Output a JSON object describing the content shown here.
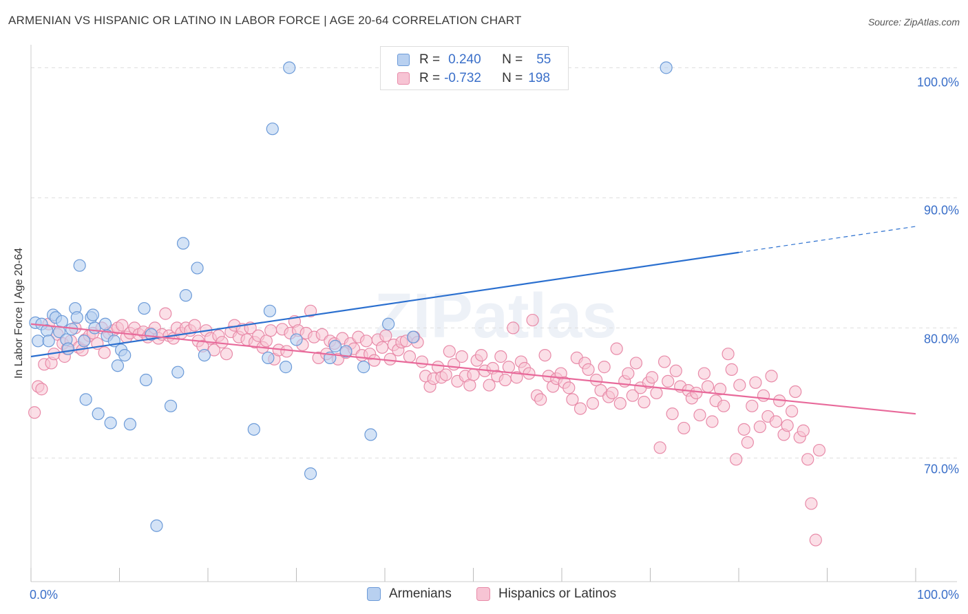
{
  "title": "ARMENIAN VS HISPANIC OR LATINO IN LABOR FORCE | AGE 20-64 CORRELATION CHART",
  "source": "Source: ZipAtlas.com",
  "watermark": "ZIPatlas",
  "legend": {
    "rows": [
      {
        "r_label": "R =",
        "r_value": "0.240",
        "n_label": "N =",
        "n_value": "55"
      },
      {
        "r_label": "R =",
        "r_value": "-0.732",
        "n_label": "N =",
        "n_value": "198"
      }
    ]
  },
  "bottom_legend": [
    "Armenians",
    "Hispanics or Latinos"
  ],
  "colors": {
    "armenians_fill": "#b8d0f0",
    "armenians_stroke": "#6b9ad8",
    "armenians_line": "#2a6fcf",
    "hispanics_fill": "#f7c4d4",
    "hispanics_stroke": "#e88aa8",
    "hispanics_line": "#e8699a",
    "axis_text": "#3a6fc9",
    "grid": "#dddddd"
  },
  "chart_data": {
    "type": "scatter",
    "title": "ARMENIAN VS HISPANIC OR LATINO IN LABOR FORCE | AGE 20-64 CORRELATION CHART",
    "xlabel": "",
    "ylabel": "In Labor Force | Age 20-64",
    "xlim": [
      0,
      100
    ],
    "ylim": [
      60.5,
      101.5
    ],
    "x_tick_labels": [
      "0.0%",
      "100.0%"
    ],
    "y_ticks": [
      70,
      80,
      90,
      100
    ],
    "y_tick_labels": [
      "70.0%",
      "80.0%",
      "90.0%",
      "100.0%"
    ],
    "grid": true,
    "legend_position": "top-center",
    "series": [
      {
        "name": "Armenians",
        "r": 0.24,
        "n": 55,
        "trend": {
          "x0": 0,
          "y0": 77.8,
          "x1": 80,
          "y1": 85.8,
          "dashed_to_x": 100,
          "dashed_to_y": 87.8
        },
        "points": [
          [
            0.5,
            80.4
          ],
          [
            0.8,
            79.0
          ],
          [
            1.2,
            80.3
          ],
          [
            1.8,
            79.8
          ],
          [
            2.0,
            79.0
          ],
          [
            2.5,
            81.0
          ],
          [
            2.8,
            80.8
          ],
          [
            3.2,
            79.7
          ],
          [
            3.5,
            80.5
          ],
          [
            4.0,
            79.1
          ],
          [
            4.2,
            78.4
          ],
          [
            4.6,
            79.9
          ],
          [
            5.0,
            81.5
          ],
          [
            5.2,
            80.8
          ],
          [
            5.5,
            84.8
          ],
          [
            6.0,
            79.0
          ],
          [
            6.2,
            74.5
          ],
          [
            6.8,
            80.8
          ],
          [
            7.0,
            81.0
          ],
          [
            7.2,
            80.0
          ],
          [
            7.6,
            73.4
          ],
          [
            8.4,
            80.3
          ],
          [
            8.6,
            79.4
          ],
          [
            9.0,
            72.7
          ],
          [
            9.4,
            79.0
          ],
          [
            9.8,
            77.1
          ],
          [
            10.2,
            78.3
          ],
          [
            10.6,
            77.9
          ],
          [
            11.2,
            72.6
          ],
          [
            12.8,
            81.5
          ],
          [
            13.0,
            76.0
          ],
          [
            13.6,
            79.5
          ],
          [
            14.2,
            64.8
          ],
          [
            15.8,
            74.0
          ],
          [
            16.6,
            76.6
          ],
          [
            17.2,
            86.5
          ],
          [
            17.5,
            82.5
          ],
          [
            18.8,
            84.6
          ],
          [
            19.6,
            77.9
          ],
          [
            25.2,
            72.2
          ],
          [
            26.8,
            77.7
          ],
          [
            27.0,
            81.3
          ],
          [
            27.3,
            95.3
          ],
          [
            28.8,
            77.0
          ],
          [
            29.2,
            100.0
          ],
          [
            30.0,
            79.1
          ],
          [
            31.6,
            68.8
          ],
          [
            33.8,
            77.7
          ],
          [
            34.4,
            78.6
          ],
          [
            35.6,
            78.2
          ],
          [
            37.6,
            77.0
          ],
          [
            38.4,
            71.8
          ],
          [
            40.4,
            80.3
          ],
          [
            43.2,
            79.3
          ],
          [
            71.8,
            100.0
          ]
        ]
      },
      {
        "name": "Hispanics or Latinos",
        "r": -0.732,
        "n": 198,
        "trend": {
          "x0": 0,
          "y0": 80.3,
          "x1": 100,
          "y1": 73.4
        },
        "points": [
          [
            0.4,
            73.5
          ],
          [
            0.8,
            75.5
          ],
          [
            1.2,
            75.3
          ],
          [
            1.5,
            77.2
          ],
          [
            2.0,
            80.3
          ],
          [
            2.3,
            77.3
          ],
          [
            2.6,
            78.0
          ],
          [
            3.0,
            79.5
          ],
          [
            3.6,
            78.8
          ],
          [
            3.8,
            77.8
          ],
          [
            4.1,
            78.4
          ],
          [
            4.5,
            79.0
          ],
          [
            5.0,
            80.0
          ],
          [
            5.4,
            78.5
          ],
          [
            5.8,
            78.3
          ],
          [
            6.1,
            79.1
          ],
          [
            6.6,
            79.4
          ],
          [
            7.0,
            79.6
          ],
          [
            7.5,
            78.8
          ],
          [
            8.0,
            80.0
          ],
          [
            8.3,
            78.1
          ],
          [
            8.8,
            79.6
          ],
          [
            9.3,
            79.8
          ],
          [
            9.8,
            80.0
          ],
          [
            10.3,
            80.2
          ],
          [
            10.8,
            79.3
          ],
          [
            11.2,
            79.6
          ],
          [
            11.7,
            80.0
          ],
          [
            12.2,
            79.5
          ],
          [
            12.7,
            79.7
          ],
          [
            13.2,
            79.3
          ],
          [
            13.5,
            79.6
          ],
          [
            14.0,
            80.0
          ],
          [
            14.4,
            79.2
          ],
          [
            14.8,
            79.5
          ],
          [
            15.2,
            81.1
          ],
          [
            15.6,
            79.4
          ],
          [
            16.1,
            79.2
          ],
          [
            16.5,
            80.0
          ],
          [
            17.0,
            79.6
          ],
          [
            17.5,
            80.0
          ],
          [
            18.0,
            79.8
          ],
          [
            18.5,
            80.2
          ],
          [
            18.9,
            79.0
          ],
          [
            19.4,
            78.6
          ],
          [
            19.8,
            79.8
          ],
          [
            20.3,
            79.2
          ],
          [
            20.7,
            78.3
          ],
          [
            21.2,
            79.4
          ],
          [
            21.6,
            78.9
          ],
          [
            22.1,
            78.0
          ],
          [
            22.6,
            79.7
          ],
          [
            23.0,
            80.2
          ],
          [
            23.5,
            79.3
          ],
          [
            23.9,
            79.9
          ],
          [
            24.4,
            79.1
          ],
          [
            24.8,
            80.0
          ],
          [
            25.3,
            78.9
          ],
          [
            25.7,
            79.4
          ],
          [
            26.2,
            78.5
          ],
          [
            26.6,
            79.0
          ],
          [
            27.1,
            79.8
          ],
          [
            27.5,
            77.6
          ],
          [
            28.0,
            78.3
          ],
          [
            28.4,
            79.9
          ],
          [
            28.9,
            78.2
          ],
          [
            29.3,
            79.6
          ],
          [
            29.8,
            80.5
          ],
          [
            30.2,
            79.8
          ],
          [
            30.7,
            78.7
          ],
          [
            31.1,
            79.6
          ],
          [
            31.6,
            81.3
          ],
          [
            32.0,
            79.3
          ],
          [
            32.5,
            77.7
          ],
          [
            32.9,
            79.5
          ],
          [
            33.4,
            78.0
          ],
          [
            33.8,
            79.0
          ],
          [
            34.3,
            78.8
          ],
          [
            34.7,
            77.6
          ],
          [
            35.2,
            79.2
          ],
          [
            35.6,
            78.1
          ],
          [
            36.1,
            78.8
          ],
          [
            36.5,
            78.4
          ],
          [
            37.0,
            79.3
          ],
          [
            37.4,
            77.9
          ],
          [
            37.9,
            79.0
          ],
          [
            38.3,
            78.0
          ],
          [
            38.8,
            77.5
          ],
          [
            39.2,
            79.1
          ],
          [
            39.7,
            78.5
          ],
          [
            40.1,
            79.4
          ],
          [
            40.6,
            77.6
          ],
          [
            41.0,
            78.7
          ],
          [
            41.5,
            78.3
          ],
          [
            41.9,
            78.9
          ],
          [
            42.4,
            79.0
          ],
          [
            42.8,
            77.8
          ],
          [
            43.3,
            79.3
          ],
          [
            43.7,
            78.9
          ],
          [
            44.2,
            77.4
          ],
          [
            44.6,
            76.3
          ],
          [
            45.1,
            75.5
          ],
          [
            45.5,
            76.1
          ],
          [
            46.0,
            77.0
          ],
          [
            46.4,
            76.2
          ],
          [
            46.9,
            76.4
          ],
          [
            47.3,
            78.2
          ],
          [
            47.8,
            77.2
          ],
          [
            48.2,
            75.9
          ],
          [
            48.7,
            77.8
          ],
          [
            49.1,
            76.3
          ],
          [
            49.6,
            75.6
          ],
          [
            50.0,
            76.4
          ],
          [
            50.4,
            77.5
          ],
          [
            50.9,
            77.9
          ],
          [
            51.3,
            76.7
          ],
          [
            51.8,
            75.6
          ],
          [
            52.2,
            76.9
          ],
          [
            52.7,
            76.3
          ],
          [
            53.1,
            77.8
          ],
          [
            53.6,
            76.0
          ],
          [
            54.0,
            77.0
          ],
          [
            54.5,
            80.0
          ],
          [
            54.9,
            76.2
          ],
          [
            55.4,
            77.4
          ],
          [
            55.8,
            76.9
          ],
          [
            56.3,
            76.5
          ],
          [
            56.7,
            80.6
          ],
          [
            57.2,
            74.8
          ],
          [
            57.6,
            74.5
          ],
          [
            58.1,
            77.9
          ],
          [
            58.5,
            76.3
          ],
          [
            59.0,
            75.5
          ],
          [
            59.4,
            76.1
          ],
          [
            59.9,
            76.5
          ],
          [
            60.3,
            75.8
          ],
          [
            60.8,
            75.4
          ],
          [
            61.2,
            74.5
          ],
          [
            61.7,
            77.7
          ],
          [
            62.1,
            73.8
          ],
          [
            62.6,
            77.3
          ],
          [
            63.0,
            76.8
          ],
          [
            63.5,
            74.2
          ],
          [
            63.9,
            76.0
          ],
          [
            64.4,
            75.2
          ],
          [
            64.8,
            77.0
          ],
          [
            65.3,
            74.7
          ],
          [
            65.7,
            75.0
          ],
          [
            66.2,
            78.4
          ],
          [
            66.6,
            74.2
          ],
          [
            67.1,
            75.9
          ],
          [
            67.5,
            76.5
          ],
          [
            68.0,
            74.8
          ],
          [
            68.4,
            77.3
          ],
          [
            68.9,
            75.4
          ],
          [
            69.3,
            74.3
          ],
          [
            69.8,
            75.8
          ],
          [
            70.2,
            76.2
          ],
          [
            70.7,
            75.0
          ],
          [
            71.1,
            70.8
          ],
          [
            71.6,
            77.4
          ],
          [
            72.0,
            75.9
          ],
          [
            72.5,
            73.4
          ],
          [
            72.9,
            76.7
          ],
          [
            73.4,
            75.5
          ],
          [
            73.8,
            72.3
          ],
          [
            74.3,
            75.2
          ],
          [
            74.7,
            74.6
          ],
          [
            75.2,
            75.0
          ],
          [
            75.6,
            73.3
          ],
          [
            76.1,
            76.5
          ],
          [
            76.5,
            75.5
          ],
          [
            77.0,
            72.8
          ],
          [
            77.4,
            74.4
          ],
          [
            77.9,
            75.3
          ],
          [
            78.3,
            74.0
          ],
          [
            78.8,
            78.0
          ],
          [
            79.2,
            76.8
          ],
          [
            79.7,
            69.9
          ],
          [
            80.1,
            75.6
          ],
          [
            80.6,
            72.2
          ],
          [
            81.0,
            71.2
          ],
          [
            81.5,
            74.0
          ],
          [
            81.9,
            75.8
          ],
          [
            82.4,
            72.4
          ],
          [
            82.8,
            74.8
          ],
          [
            83.3,
            73.2
          ],
          [
            83.7,
            76.3
          ],
          [
            84.2,
            72.8
          ],
          [
            84.6,
            74.4
          ],
          [
            85.1,
            71.8
          ],
          [
            85.5,
            72.5
          ],
          [
            86.0,
            73.6
          ],
          [
            86.4,
            75.1
          ],
          [
            86.9,
            71.6
          ],
          [
            87.3,
            72.1
          ],
          [
            87.8,
            69.9
          ],
          [
            88.2,
            66.5
          ],
          [
            88.7,
            63.7
          ],
          [
            89.1,
            70.6
          ]
        ]
      }
    ]
  }
}
